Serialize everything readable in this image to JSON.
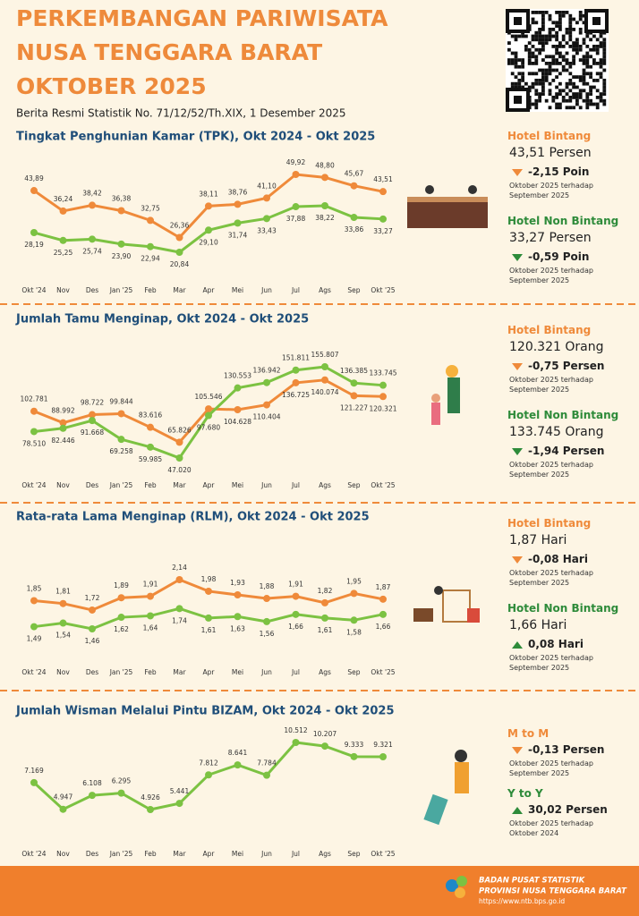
{
  "header": {
    "title": [
      "PERKEMBANGAN PARIWISATA",
      "NUSA TENGGARA BARAT",
      "OKTOBER 2025"
    ],
    "subtitle": "Berita Resmi Statistik No. 71/12/52/Th.XIX, 1 Desember 2025"
  },
  "chart_data": [
    {
      "type": "line",
      "title": "Tingkat Penghunian Kamar (TPK), Okt 2024 - Okt 2025",
      "categories": [
        "Okt '24",
        "Nov",
        "Des",
        "Jan '25",
        "Feb",
        "Mar",
        "Apr",
        "Mei",
        "Jun",
        "Jul",
        "Ags",
        "Sep",
        "Okt '25"
      ],
      "series": [
        {
          "color": "#ef8a3a",
          "values": [
            43.89,
            36.24,
            38.42,
            36.38,
            32.75,
            26.36,
            38.11,
            38.76,
            41.1,
            49.92,
            48.8,
            45.67,
            43.51
          ],
          "value_labels": [
            "43,89",
            "36,24",
            "38,42",
            "36,38",
            "32,75",
            "26,36",
            "38,11",
            "38,76",
            "41,10",
            "49,92",
            "48,80",
            "45,67",
            "43,51"
          ]
        },
        {
          "color": "#7cc242",
          "values": [
            28.19,
            25.25,
            25.74,
            23.9,
            22.94,
            20.84,
            29.1,
            31.74,
            33.43,
            37.88,
            38.22,
            33.86,
            33.27
          ],
          "value_labels": [
            "28,19",
            "25,25",
            "25,74",
            "23,90",
            "22,94",
            "20,84",
            "29,10",
            "31,74",
            "33,43",
            "37,88",
            "38,22",
            "33,86",
            "33,27"
          ]
        }
      ]
    },
    {
      "type": "line",
      "title": "Jumlah Tamu Menginap, Okt 2024 - Okt 2025",
      "categories": [
        "Okt '24",
        "Nov",
        "Des",
        "Jan '25",
        "Feb",
        "Mar",
        "Apr",
        "Mei",
        "Jun",
        "Jul",
        "Ags",
        "Sep",
        "Okt '25"
      ],
      "series": [
        {
          "color": "#ef8a3a",
          "values": [
            102781,
            88992,
            98722,
            99844,
            83616,
            65826,
            105546,
            104628,
            110404,
            136725,
            140074,
            121227,
            120321
          ],
          "value_labels": [
            "102.781",
            "88.992",
            "98.722",
            "99.844",
            "83.616",
            "65.826",
            "105.546",
            "104.628",
            "110.404",
            "136.725",
            "140.074",
            "121.227",
            "120.321"
          ]
        },
        {
          "color": "#7cc242",
          "values": [
            78510,
            82446,
            91668,
            69258,
            59985,
            47020,
            97680,
            130553,
            136942,
            151811,
            155807,
            136385,
            133745
          ],
          "value_labels": [
            "78.510",
            "82.446",
            "91.668",
            "69.258",
            "59.985",
            "47.020",
            "97.680",
            "130.553",
            "136.942",
            "151.811",
            "155.807",
            "136.385",
            "133.745"
          ]
        }
      ]
    },
    {
      "type": "line",
      "title": "Rata-rata Lama Menginap (RLM), Okt 2024 - Okt 2025",
      "categories": [
        "Okt '24",
        "Nov",
        "Des",
        "Jan '25",
        "Feb",
        "Mar",
        "Apr",
        "Mei",
        "Jun",
        "Jul",
        "Ags",
        "Sep",
        "Okt '25"
      ],
      "series": [
        {
          "color": "#ef8a3a",
          "values": [
            1.85,
            1.81,
            1.72,
            1.89,
            1.91,
            2.14,
            1.98,
            1.93,
            1.88,
            1.91,
            1.82,
            1.95,
            1.87
          ],
          "value_labels": [
            "1,85",
            "1,81",
            "1,72",
            "1,89",
            "1,91",
            "2,14",
            "1,98",
            "1,93",
            "1,88",
            "1,91",
            "1,82",
            "1,95",
            "1,87"
          ]
        },
        {
          "color": "#7cc242",
          "values": [
            1.49,
            1.54,
            1.46,
            1.62,
            1.64,
            1.74,
            1.61,
            1.63,
            1.56,
            1.66,
            1.61,
            1.58,
            1.66
          ],
          "value_labels": [
            "1,49",
            "1,54",
            "1,46",
            "1,62",
            "1,64",
            "1,74",
            "1,61",
            "1,63",
            "1,56",
            "1,66",
            "1,61",
            "1,58",
            "1,66"
          ]
        }
      ]
    },
    {
      "type": "line",
      "title": "Jumlah Wisman Melalui Pintu BIZAM, Okt 2024 - Okt 2025",
      "categories": [
        "Okt '24",
        "Nov",
        "Des",
        "Jan '25",
        "Feb",
        "Mar",
        "Apr",
        "Mei",
        "Jun",
        "Jul",
        "Ags",
        "Sep",
        "Okt '25"
      ],
      "series": [
        {
          "color": "#7cc242",
          "values": [
            7169,
            4947,
            6108,
            6295,
            4926,
            5441,
            7812,
            8641,
            7784,
            10512,
            10207,
            9333,
            9321
          ],
          "value_labels": [
            "7.169",
            "4.947",
            "6.108",
            "6.295",
            "4.926",
            "5.441",
            "7.812",
            "8.641",
            "7.784",
            "10.512",
            "10.207",
            "9.333",
            "9.321"
          ]
        }
      ]
    }
  ],
  "panels": [
    {
      "items": [
        {
          "label": "Hotel Bintang",
          "value": "43,51 Persen",
          "change": "-2,15 Poin",
          "note": "Oktober 2025 terhadap September 2025"
        },
        {
          "label": "Hotel Non Bintang",
          "value": "33,27 Persen",
          "change": "-0,59 Poin",
          "note": "Oktober 2025 terhadap September 2025"
        }
      ]
    },
    {
      "items": [
        {
          "label": "Hotel Bintang",
          "value": "120.321 Orang",
          "change": "-0,75 Persen",
          "note": "Oktober 2025 terhadap September 2025"
        },
        {
          "label": "Hotel Non Bintang",
          "value": "133.745 Orang",
          "change": "-1,94 Persen",
          "note": "Oktober 2025 terhadap September 2025"
        }
      ]
    },
    {
      "items": [
        {
          "label": "Hotel Bintang",
          "value": "1,87 Hari",
          "change": "-0,08 Hari",
          "note": "Oktober 2025 terhadap September 2025"
        },
        {
          "label": "Hotel Non Bintang",
          "value": "1,66 Hari",
          "change": "0,08 Hari",
          "note": "Oktober 2025 terhadap September 2025"
        }
      ]
    },
    {
      "items": [
        {
          "label": "M to M",
          "change": "-0,13 Persen",
          "note": "Oktober 2025 terhadap September 2025"
        },
        {
          "label": "Y to Y",
          "change": "30,02 Persen",
          "note": "Oktober 2025 terhadap Oktober 2024"
        }
      ]
    }
  ],
  "footer": {
    "org": "BADAN PUSAT STATISTIK",
    "province": "PROVINSI NUSA TENGGARA BARAT",
    "url": "https://www.ntb.bps.go.id"
  }
}
